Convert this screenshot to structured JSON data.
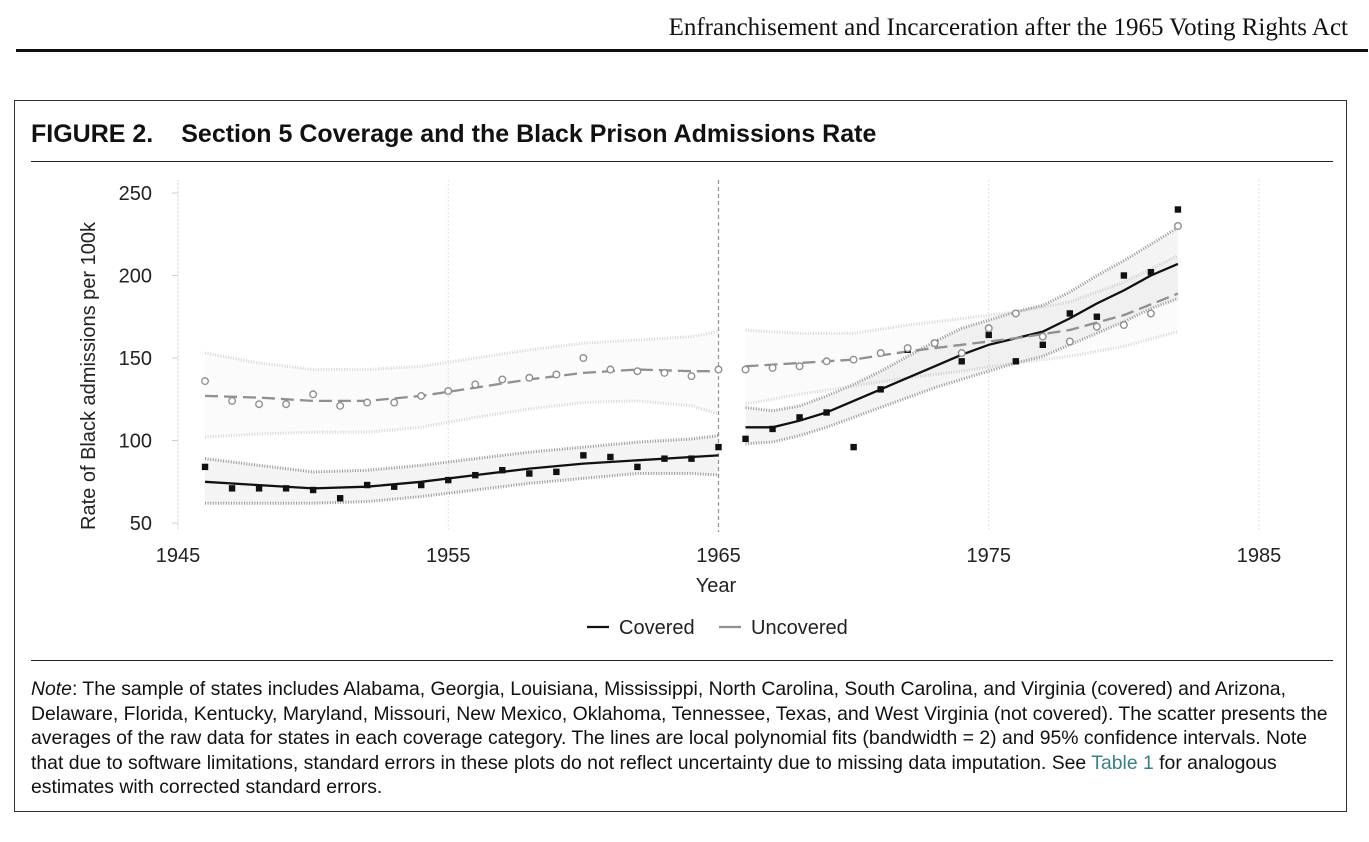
{
  "header": {
    "running_head": "Enfranchisement and Incarceration after the 1965 Voting Rights Act"
  },
  "figure": {
    "label": "FIGURE 2.",
    "title": "Section 5 Coverage and the Black Prison Admissions Rate"
  },
  "chart_data": {
    "type": "scatter",
    "xlabel": "Year",
    "ylabel": "Rate of Black admissions per 100k",
    "xlim": [
      1945,
      1985
    ],
    "ylim": [
      45,
      255
    ],
    "x_ticks": [
      "1945",
      "1955",
      "1965",
      "1975",
      "1985"
    ],
    "y_ticks": [
      "50",
      "100",
      "150",
      "200",
      "250"
    ],
    "discontinuity_year": 1965,
    "grid": true,
    "legend_position": "bottom-center",
    "series": [
      {
        "name": "Covered",
        "color": "#111111",
        "marker": "square",
        "points": [
          [
            1946,
            84
          ],
          [
            1947,
            71
          ],
          [
            1948,
            71
          ],
          [
            1949,
            71
          ],
          [
            1950,
            70
          ],
          [
            1951,
            65
          ],
          [
            1952,
            73
          ],
          [
            1953,
            72
          ],
          [
            1954,
            73
          ],
          [
            1955,
            76
          ],
          [
            1956,
            79
          ],
          [
            1957,
            82
          ],
          [
            1958,
            80
          ],
          [
            1959,
            81
          ],
          [
            1960,
            91
          ],
          [
            1961,
            90
          ],
          [
            1962,
            84
          ],
          [
            1963,
            89
          ],
          [
            1964,
            89
          ],
          [
            1965,
            96
          ],
          [
            1966,
            101
          ],
          [
            1967,
            107
          ],
          [
            1968,
            114
          ],
          [
            1969,
            117
          ],
          [
            1970,
            96
          ],
          [
            1971,
            131
          ],
          [
            1972,
            155
          ],
          [
            1973,
            159
          ],
          [
            1974,
            148
          ],
          [
            1975,
            164
          ],
          [
            1976,
            148
          ],
          [
            1977,
            158
          ],
          [
            1978,
            177
          ],
          [
            1979,
            175
          ],
          [
            1980,
            200
          ],
          [
            1981,
            202
          ],
          [
            1982,
            240
          ]
        ],
        "fit_pre": [
          [
            1946,
            75
          ],
          [
            1948,
            73
          ],
          [
            1950,
            71
          ],
          [
            1952,
            72
          ],
          [
            1954,
            75
          ],
          [
            1956,
            79
          ],
          [
            1958,
            83
          ],
          [
            1960,
            86
          ],
          [
            1962,
            88
          ],
          [
            1964,
            90
          ],
          [
            1965,
            91
          ]
        ],
        "ci_pre_upper": [
          [
            1946,
            89
          ],
          [
            1948,
            85
          ],
          [
            1950,
            81
          ],
          [
            1952,
            82
          ],
          [
            1954,
            85
          ],
          [
            1956,
            89
          ],
          [
            1958,
            93
          ],
          [
            1960,
            96
          ],
          [
            1962,
            99
          ],
          [
            1964,
            101
          ],
          [
            1965,
            103
          ]
        ],
        "ci_pre_lower": [
          [
            1946,
            62
          ],
          [
            1948,
            62
          ],
          [
            1950,
            62
          ],
          [
            1952,
            63
          ],
          [
            1954,
            66
          ],
          [
            1956,
            70
          ],
          [
            1958,
            74
          ],
          [
            1960,
            77
          ],
          [
            1962,
            80
          ],
          [
            1964,
            80
          ],
          [
            1965,
            79
          ]
        ],
        "fit_post": [
          [
            1966,
            108
          ],
          [
            1967,
            108
          ],
          [
            1968,
            112
          ],
          [
            1969,
            117
          ],
          [
            1970,
            124
          ],
          [
            1971,
            131
          ],
          [
            1972,
            138
          ],
          [
            1973,
            145
          ],
          [
            1974,
            152
          ],
          [
            1975,
            158
          ],
          [
            1976,
            162
          ],
          [
            1977,
            166
          ],
          [
            1978,
            174
          ],
          [
            1979,
            183
          ],
          [
            1980,
            191
          ],
          [
            1981,
            200
          ],
          [
            1982,
            207
          ]
        ],
        "ci_post_upper": [
          [
            1966,
            120
          ],
          [
            1967,
            118
          ],
          [
            1968,
            121
          ],
          [
            1969,
            127
          ],
          [
            1970,
            134
          ],
          [
            1971,
            142
          ],
          [
            1972,
            151
          ],
          [
            1973,
            160
          ],
          [
            1974,
            168
          ],
          [
            1975,
            173
          ],
          [
            1976,
            178
          ],
          [
            1977,
            182
          ],
          [
            1978,
            190
          ],
          [
            1979,
            200
          ],
          [
            1980,
            209
          ],
          [
            1981,
            219
          ],
          [
            1982,
            229
          ]
        ],
        "ci_post_lower": [
          [
            1966,
            98
          ],
          [
            1967,
            99
          ],
          [
            1968,
            103
          ],
          [
            1969,
            108
          ],
          [
            1970,
            114
          ],
          [
            1971,
            120
          ],
          [
            1972,
            126
          ],
          [
            1973,
            132
          ],
          [
            1974,
            137
          ],
          [
            1975,
            142
          ],
          [
            1976,
            147
          ],
          [
            1977,
            151
          ],
          [
            1978,
            158
          ],
          [
            1979,
            165
          ],
          [
            1980,
            172
          ],
          [
            1981,
            180
          ],
          [
            1982,
            186
          ]
        ]
      },
      {
        "name": "Uncovered",
        "color": "#909090",
        "marker": "circle",
        "points": [
          [
            1946,
            136
          ],
          [
            1947,
            124
          ],
          [
            1948,
            122
          ],
          [
            1949,
            122
          ],
          [
            1950,
            128
          ],
          [
            1951,
            121
          ],
          [
            1952,
            123
          ],
          [
            1953,
            123
          ],
          [
            1954,
            127
          ],
          [
            1955,
            130
          ],
          [
            1956,
            134
          ],
          [
            1957,
            137
          ],
          [
            1958,
            138
          ],
          [
            1959,
            140
          ],
          [
            1960,
            150
          ],
          [
            1961,
            143
          ],
          [
            1962,
            142
          ],
          [
            1963,
            141
          ],
          [
            1964,
            139
          ],
          [
            1965,
            143
          ],
          [
            1966,
            143
          ],
          [
            1967,
            144
          ],
          [
            1968,
            145
          ],
          [
            1969,
            148
          ],
          [
            1970,
            149
          ],
          [
            1971,
            153
          ],
          [
            1972,
            156
          ],
          [
            1973,
            159
          ],
          [
            1974,
            153
          ],
          [
            1975,
            168
          ],
          [
            1976,
            177
          ],
          [
            1977,
            163
          ],
          [
            1978,
            160
          ],
          [
            1979,
            169
          ],
          [
            1980,
            170
          ],
          [
            1981,
            177
          ],
          [
            1982,
            230
          ]
        ],
        "fit_pre": [
          [
            1946,
            127
          ],
          [
            1948,
            126
          ],
          [
            1950,
            124
          ],
          [
            1952,
            124
          ],
          [
            1954,
            127
          ],
          [
            1956,
            132
          ],
          [
            1958,
            137
          ],
          [
            1960,
            141
          ],
          [
            1962,
            143
          ],
          [
            1964,
            142
          ],
          [
            1965,
            142
          ]
        ],
        "ci_pre_upper": [
          [
            1946,
            153
          ],
          [
            1948,
            147
          ],
          [
            1950,
            143
          ],
          [
            1952,
            143
          ],
          [
            1954,
            145
          ],
          [
            1956,
            150
          ],
          [
            1958,
            155
          ],
          [
            1960,
            159
          ],
          [
            1962,
            161
          ],
          [
            1964,
            163
          ],
          [
            1965,
            166
          ]
        ],
        "ci_pre_lower": [
          [
            1946,
            102
          ],
          [
            1948,
            104
          ],
          [
            1950,
            105
          ],
          [
            1952,
            105
          ],
          [
            1954,
            108
          ],
          [
            1956,
            114
          ],
          [
            1958,
            119
          ],
          [
            1960,
            123
          ],
          [
            1962,
            124
          ],
          [
            1964,
            121
          ],
          [
            1965,
            116
          ]
        ],
        "fit_post": [
          [
            1966,
            145
          ],
          [
            1968,
            147
          ],
          [
            1970,
            149
          ],
          [
            1972,
            154
          ],
          [
            1974,
            158
          ],
          [
            1976,
            162
          ],
          [
            1978,
            167
          ],
          [
            1980,
            176
          ],
          [
            1982,
            189
          ]
        ],
        "ci_post_upper": [
          [
            1966,
            167
          ],
          [
            1968,
            165
          ],
          [
            1970,
            165
          ],
          [
            1972,
            170
          ],
          [
            1974,
            174
          ],
          [
            1976,
            178
          ],
          [
            1978,
            184
          ],
          [
            1980,
            196
          ],
          [
            1982,
            212
          ]
        ],
        "ci_post_lower": [
          [
            1966,
            122
          ],
          [
            1968,
            128
          ],
          [
            1970,
            133
          ],
          [
            1972,
            138
          ],
          [
            1974,
            142
          ],
          [
            1976,
            147
          ],
          [
            1978,
            151
          ],
          [
            1980,
            157
          ],
          [
            1982,
            166
          ]
        ]
      }
    ]
  },
  "legend": {
    "items": [
      "Covered",
      "Uncovered"
    ]
  },
  "note": {
    "label": "Note",
    "text_before_link": ": The sample of states includes Alabama, Georgia, Louisiana, Mississippi, North Carolina, South Carolina, and Virginia (covered) and Arizona, Delaware, Florida, Kentucky, Maryland, Missouri, New Mexico, Oklahoma, Tennessee, Texas, and West Virginia (not covered). The scatter presents the averages of the raw data for states in each coverage category. The lines are local polynomial fits (bandwidth = 2) and 95% confidence intervals. Note that due to software limitations, standard errors in these plots do not reflect uncertainty due to missing data imputation. See ",
    "link_text": "Table 1",
    "text_after_link": " for analogous estimates with corrected standard errors."
  }
}
